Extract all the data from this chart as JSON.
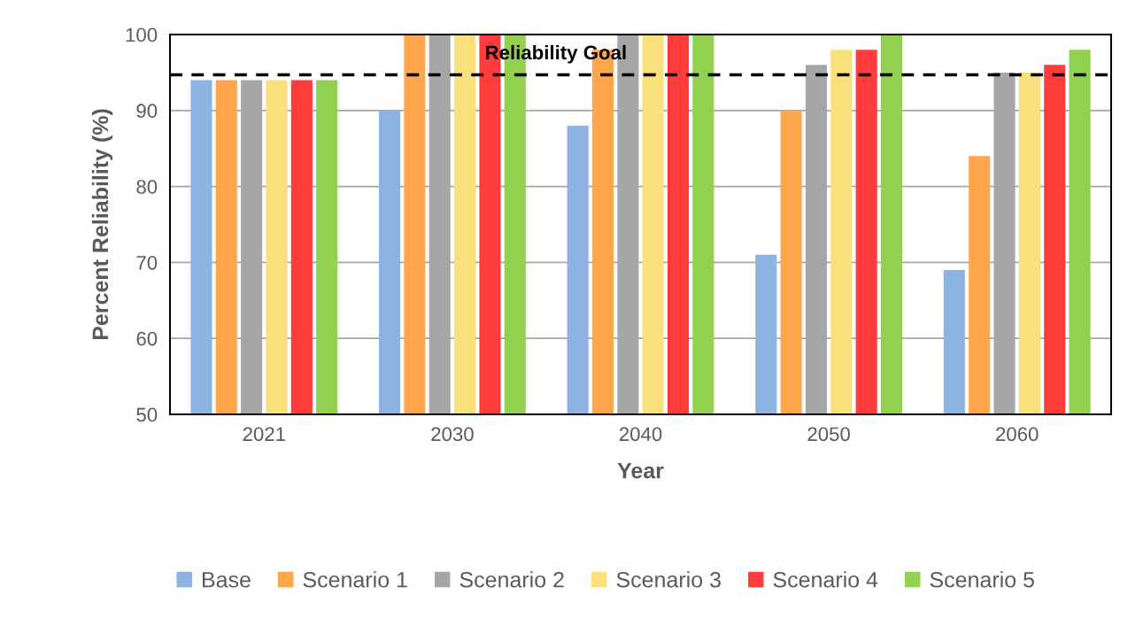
{
  "chart_data": {
    "type": "bar",
    "xlabel": "Year",
    "ylabel": "Percent Reliability (%)",
    "categories": [
      "2021",
      "2030",
      "2040",
      "2050",
      "2060"
    ],
    "series": [
      {
        "name": "Base",
        "color": "#8db3e2",
        "values": [
          94,
          90,
          88,
          71,
          69
        ]
      },
      {
        "name": "Scenario 1",
        "color": "#ffa64d",
        "values": [
          94,
          100,
          98,
          90,
          84
        ]
      },
      {
        "name": "Scenario 2",
        "color": "#a6a6a6",
        "values": [
          94,
          100,
          100,
          96,
          95
        ]
      },
      {
        "name": "Scenario 3",
        "color": "#f9e07a",
        "values": [
          94,
          100,
          100,
          98,
          95
        ]
      },
      {
        "name": "Scenario 4",
        "color": "#ff3b3b",
        "values": [
          94,
          100,
          100,
          98,
          96
        ]
      },
      {
        "name": "Scenario 5",
        "color": "#92d050",
        "values": [
          94,
          100,
          100,
          100,
          98
        ]
      }
    ],
    "ylim": [
      50,
      100
    ],
    "yticks": [
      50,
      60,
      70,
      80,
      90,
      100
    ],
    "grid": "y",
    "legend": "bottom",
    "ref_lines": [
      {
        "axis": "y",
        "value": 94.7,
        "label": "Reliability Goal",
        "color": "#000000",
        "line_style": "dashed"
      }
    ]
  }
}
